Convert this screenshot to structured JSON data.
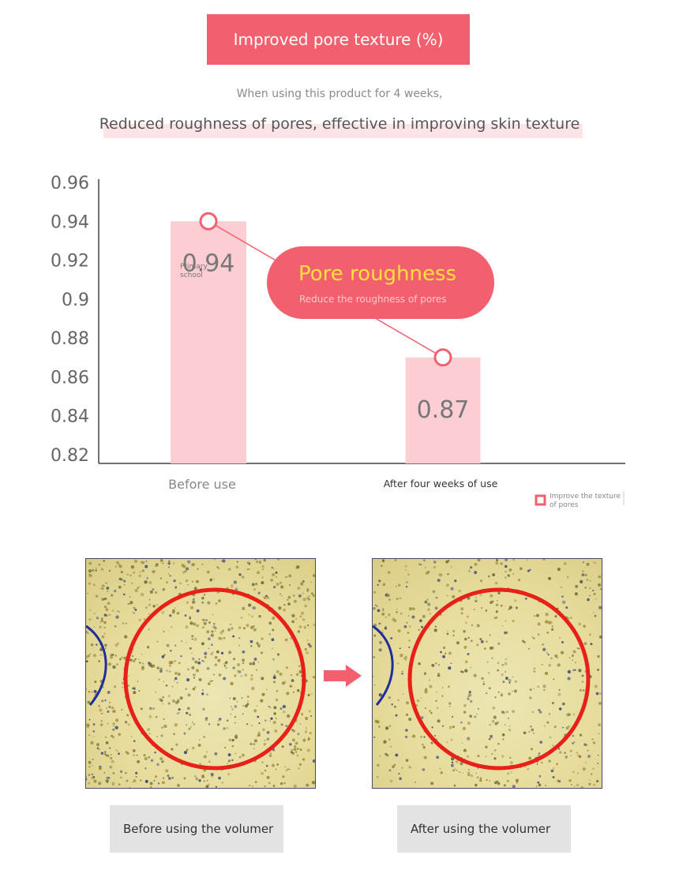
{
  "header": {
    "title": "Improved pore texture (%)",
    "subtitle": "When using this product for 4 weeks,",
    "headline": "Reduced roughness of pores, effective in improving skin texture"
  },
  "callout": {
    "title": "Pore roughness",
    "subtitle": "Reduce the roughness of pores"
  },
  "chart_data": {
    "type": "bar",
    "categories": [
      "Before use",
      "After four weeks of use"
    ],
    "series": [
      {
        "name": "Improve the texture of pores",
        "values": [
          0.94,
          0.87
        ]
      }
    ],
    "data_labels": [
      "0.94",
      "0.87"
    ],
    "annotation": "Primary school",
    "yticks": [
      "0.96",
      "0.94",
      "0.92",
      "0.9",
      "0.88",
      "0.86",
      "0.84",
      "0.82"
    ],
    "ylim": [
      0.82,
      0.96
    ],
    "legend_position": "bottom-right",
    "bar_color": "#fccdd3",
    "line_color": "#f2606f",
    "grid": false
  },
  "captions": {
    "before": "Before using the volumer",
    "after": "After using the volumer"
  },
  "colors": {
    "accent": "#f2606f",
    "callout_title": "#ffe03a",
    "circle": "#e8201a"
  }
}
